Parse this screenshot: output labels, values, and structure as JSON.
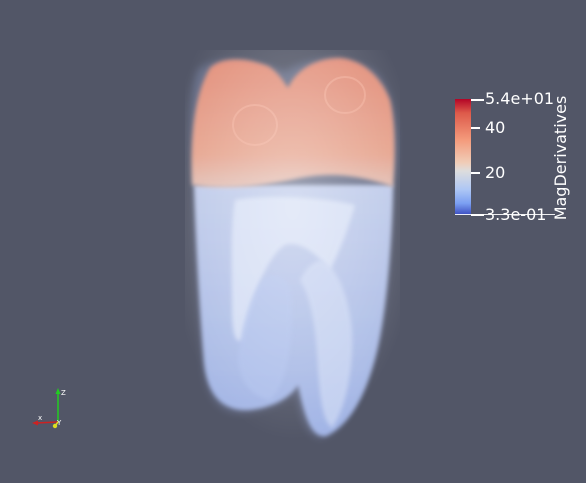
{
  "colorbar": {
    "title": "MagDerivatives",
    "max_label": "5.4e+01",
    "min_label": "3.3e-01",
    "tick_labels": [
      "40",
      "20"
    ]
  },
  "axes": {
    "x_label": "x",
    "y_label": "Y",
    "z_label": "Z"
  },
  "colors": {
    "background": "#525667",
    "colormap_high": "#b40426",
    "colormap_mid": "#dddddd",
    "colormap_low": "#3b4cc0"
  }
}
